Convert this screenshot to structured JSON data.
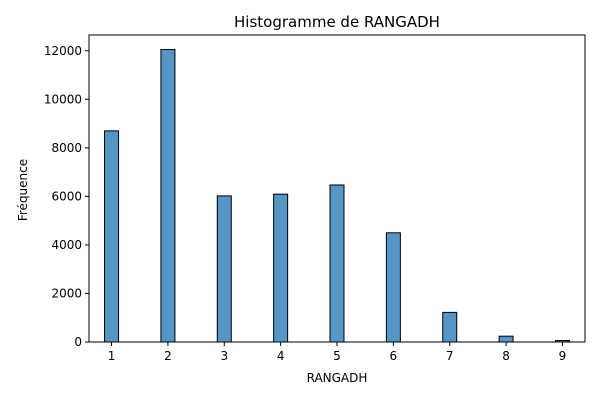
{
  "chart_data": {
    "type": "bar",
    "title": "Histogramme de RANGADH",
    "xlabel": "RANGADH",
    "ylabel": "Fréquence",
    "categories": [
      "1",
      "2",
      "3",
      "4",
      "5",
      "6",
      "7",
      "8",
      "9"
    ],
    "x": [
      1,
      2,
      3,
      4,
      5,
      6,
      7,
      8,
      9
    ],
    "values": [
      8700,
      12050,
      6020,
      6090,
      6470,
      4500,
      1220,
      240,
      60
    ],
    "xlim": [
      0.6,
      9.4
    ],
    "ylim": [
      0,
      12650
    ],
    "xticks": [
      1,
      2,
      3,
      4,
      5,
      6,
      7,
      8,
      9
    ],
    "yticks": [
      0,
      2000,
      4000,
      6000,
      8000,
      10000,
      12000
    ],
    "bar_color": "#5596C7",
    "edge_color": "#000000",
    "grid": false,
    "legend": false
  }
}
